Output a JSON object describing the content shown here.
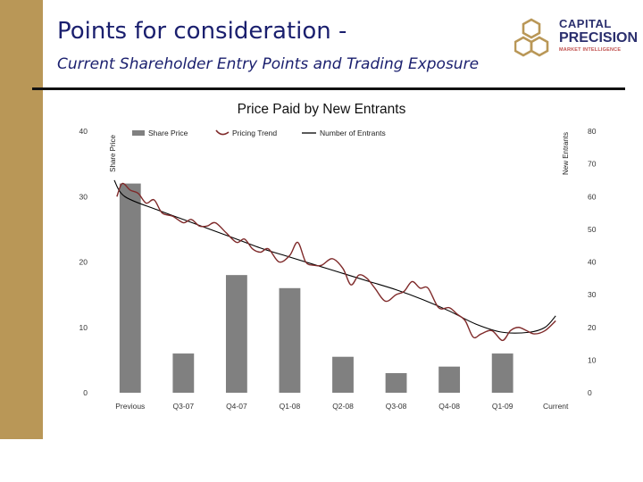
{
  "slide": {
    "title": "Points for consideration -",
    "subtitle": "Current Shareholder Entry Points and Trading Exposure",
    "accent_color": "#b99757",
    "title_color": "#1a1f6e"
  },
  "logo": {
    "line1": "CAPITAL",
    "line2": "PRECISION",
    "line3": "MARKET INTELLIGENCE",
    "color": "#b99757"
  },
  "chart_data": {
    "type": "bar",
    "title": "Price Paid by New Entrants",
    "categories": [
      "Previous",
      "Q3-07",
      "Q4-07",
      "Q1-08",
      "Q2-08",
      "Q3-08",
      "Q4-08",
      "Q1-09",
      "Current"
    ],
    "series": [
      {
        "name": "Share Price",
        "axis": "left",
        "type": "bar",
        "color": "#808080",
        "values": [
          32,
          6,
          18,
          16,
          5.5,
          3,
          4,
          6,
          null
        ]
      },
      {
        "name": "Pricing Trend",
        "axis": "left",
        "type": "line",
        "color": "#7f2a2a",
        "x": [
          -0.25,
          -0.15,
          0,
          0.15,
          0.3,
          0.45,
          0.6,
          0.8,
          1,
          1.15,
          1.3,
          1.45,
          1.6,
          1.8,
          2,
          2.15,
          2.3,
          2.45,
          2.6,
          2.8,
          3,
          3.15,
          3.3,
          3.45,
          3.6,
          3.8,
          4,
          4.15,
          4.3,
          4.45,
          4.6,
          4.8,
          5,
          5.15,
          5.3,
          5.45,
          5.6,
          5.8,
          6,
          6.15,
          6.3,
          6.45,
          6.6,
          6.8,
          7,
          7.15,
          7.3,
          7.45,
          7.6,
          7.8,
          8
        ],
        "values": [
          30,
          32,
          31,
          30.5,
          29,
          29.5,
          27.5,
          27,
          26,
          26.5,
          25.5,
          25.5,
          26,
          24.5,
          23,
          23.5,
          22,
          21.5,
          22,
          20,
          21,
          23,
          20,
          19.5,
          19.5,
          20.5,
          19,
          16.5,
          18,
          17.5,
          16,
          14,
          15,
          15.5,
          17,
          16,
          16,
          13,
          13,
          12,
          11,
          8.5,
          9,
          9.5,
          8,
          9.5,
          10,
          9.5,
          9,
          9.5,
          11
        ]
      },
      {
        "name": "Number of Entrants",
        "axis": "right",
        "type": "line",
        "color": "#000000",
        "x": [
          -0.3,
          -0.1,
          0.5,
          1,
          1.5,
          2,
          2.5,
          3,
          3.5,
          4,
          4.5,
          5,
          5.5,
          6,
          6.5,
          7,
          7.5,
          7.8,
          8
        ],
        "values": [
          65,
          60,
          56,
          53,
          50,
          47,
          44,
          41.5,
          39,
          36.5,
          34,
          31.5,
          28.5,
          25,
          21,
          18.5,
          18.5,
          20,
          23.5
        ]
      }
    ],
    "ylabel": "Share Price",
    "ylim": [
      0,
      40
    ],
    "yticks": [
      0,
      10,
      20,
      30,
      40
    ],
    "y2label": "New Entrants",
    "y2lim": [
      0,
      80
    ],
    "y2ticks": [
      0,
      10,
      20,
      30,
      40,
      50,
      60,
      70,
      80
    ],
    "xlabel": "",
    "legend": "top",
    "grid": false
  }
}
